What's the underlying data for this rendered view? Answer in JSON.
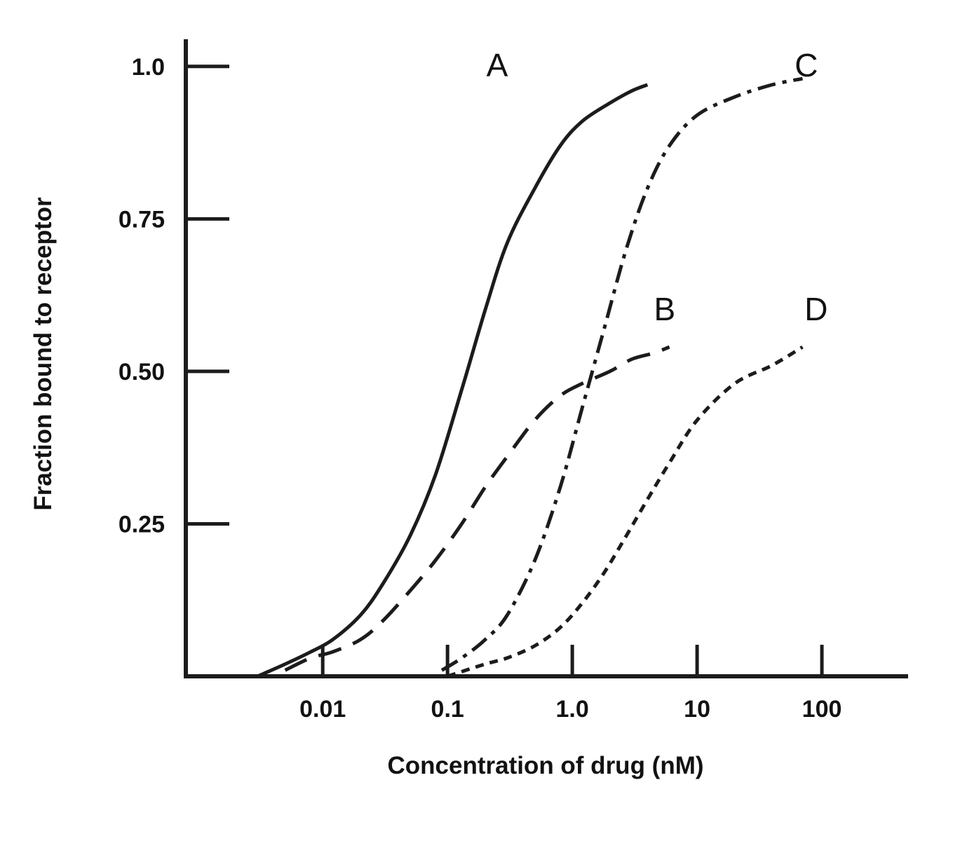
{
  "chart_data": {
    "type": "line",
    "title": "",
    "xlabel": "Concentration of drug (nM)",
    "ylabel": "Fraction bound to receptor",
    "x_scale": "log",
    "grid": false,
    "legend": "inline-labels",
    "xlim": [
      0.0008,
      460
    ],
    "ylim": [
      0,
      1.04
    ],
    "x_ticks": [
      0.01,
      0.1,
      1,
      10,
      100
    ],
    "x_tick_labels": [
      "0.01",
      "0.1",
      "1.0",
      "10",
      "100"
    ],
    "y_ticks": [
      0.25,
      0.5,
      0.75,
      1.0
    ],
    "y_tick_labels": [
      "0.25",
      "0.50",
      "0.75",
      "1.0"
    ],
    "line_color": "#1c1c1c",
    "series": [
      {
        "name": "A",
        "line_style": "solid",
        "label_pos": [
          0.25,
          1.0
        ],
        "points": [
          [
            0.003,
            0.0
          ],
          [
            0.005,
            0.02
          ],
          [
            0.008,
            0.04
          ],
          [
            0.012,
            0.06
          ],
          [
            0.02,
            0.1
          ],
          [
            0.03,
            0.15
          ],
          [
            0.05,
            0.23
          ],
          [
            0.08,
            0.33
          ],
          [
            0.13,
            0.47
          ],
          [
            0.2,
            0.6
          ],
          [
            0.3,
            0.71
          ],
          [
            0.5,
            0.8
          ],
          [
            0.8,
            0.87
          ],
          [
            1.2,
            0.91
          ],
          [
            2,
            0.94
          ],
          [
            3,
            0.96
          ],
          [
            4,
            0.97
          ]
        ]
      },
      {
        "name": "B",
        "line_style": "long-dash",
        "label_pos": [
          5.5,
          0.6
        ],
        "points": [
          [
            0.005,
            0.01
          ],
          [
            0.008,
            0.03
          ],
          [
            0.012,
            0.04
          ],
          [
            0.02,
            0.06
          ],
          [
            0.03,
            0.09
          ],
          [
            0.05,
            0.14
          ],
          [
            0.08,
            0.19
          ],
          [
            0.13,
            0.25
          ],
          [
            0.2,
            0.31
          ],
          [
            0.3,
            0.36
          ],
          [
            0.5,
            0.42
          ],
          [
            0.8,
            0.46
          ],
          [
            1.2,
            0.48
          ],
          [
            2,
            0.5
          ],
          [
            3,
            0.52
          ],
          [
            4.5,
            0.53
          ],
          [
            6,
            0.54
          ]
        ]
      },
      {
        "name": "C",
        "line_style": "dash-dot",
        "label_pos": [
          75,
          1.0
        ],
        "points": [
          [
            0.09,
            0.01
          ],
          [
            0.13,
            0.03
          ],
          [
            0.2,
            0.06
          ],
          [
            0.3,
            0.1
          ],
          [
            0.5,
            0.19
          ],
          [
            0.8,
            0.31
          ],
          [
            1.2,
            0.44
          ],
          [
            1.8,
            0.57
          ],
          [
            2.7,
            0.7
          ],
          [
            4,
            0.8
          ],
          [
            6,
            0.87
          ],
          [
            10,
            0.92
          ],
          [
            20,
            0.95
          ],
          [
            40,
            0.97
          ],
          [
            70,
            0.98
          ]
        ]
      },
      {
        "name": "D",
        "line_style": "short-dash",
        "label_pos": [
          90,
          0.6
        ],
        "points": [
          [
            0.1,
            0.0
          ],
          [
            0.2,
            0.02
          ],
          [
            0.3,
            0.03
          ],
          [
            0.5,
            0.05
          ],
          [
            0.8,
            0.08
          ],
          [
            1.2,
            0.12
          ],
          [
            1.8,
            0.17
          ],
          [
            2.7,
            0.23
          ],
          [
            4,
            0.29
          ],
          [
            6,
            0.35
          ],
          [
            10,
            0.42
          ],
          [
            20,
            0.48
          ],
          [
            40,
            0.51
          ],
          [
            70,
            0.54
          ]
        ]
      }
    ]
  }
}
